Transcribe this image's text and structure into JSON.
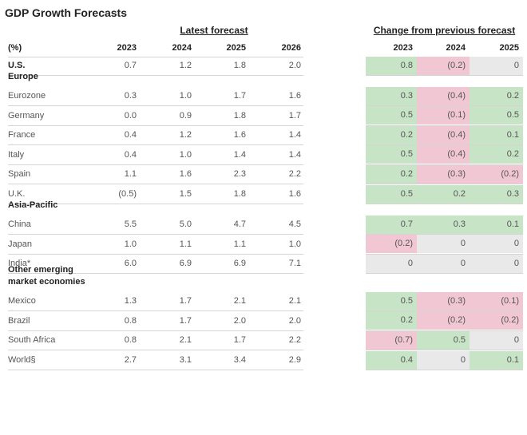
{
  "title": "GDP Growth Forecasts",
  "groups": [
    "Latest forecast",
    "Change from previous forecast"
  ],
  "header": {
    "unit": "(%)",
    "latest_years": [
      "2023",
      "2024",
      "2025",
      "2026"
    ],
    "change_years": [
      "2023",
      "2024",
      "2025"
    ]
  },
  "colors": {
    "up": "#c7e4c6",
    "down": "#f1c7d4",
    "flat": "#e9e9e9"
  },
  "rows": [
    {
      "label": "U.S.",
      "bold": true,
      "latest": [
        "0.7",
        "1.2",
        "1.8",
        "2.0"
      ],
      "change": [
        "0.8",
        "(0.2)",
        "0"
      ]
    },
    {
      "heading": [
        "Europe"
      ]
    },
    {
      "label": "Eurozone",
      "latest": [
        "0.3",
        "1.0",
        "1.7",
        "1.6"
      ],
      "change": [
        "0.3",
        "(0.4)",
        "0.2"
      ]
    },
    {
      "label": "Germany",
      "latest": [
        "0.0",
        "0.9",
        "1.8",
        "1.7"
      ],
      "change": [
        "0.5",
        "(0.1)",
        "0.5"
      ]
    },
    {
      "label": "France",
      "latest": [
        "0.4",
        "1.2",
        "1.6",
        "1.4"
      ],
      "change": [
        "0.2",
        "(0.4)",
        "0.1"
      ]
    },
    {
      "label": "Italy",
      "latest": [
        "0.4",
        "1.0",
        "1.4",
        "1.4"
      ],
      "change": [
        "0.5",
        "(0.4)",
        "0.2"
      ]
    },
    {
      "label": "Spain",
      "latest": [
        "1.1",
        "1.6",
        "2.3",
        "2.2"
      ],
      "change": [
        "0.2",
        "(0.3)",
        "(0.2)"
      ]
    },
    {
      "label": "U.K.",
      "latest": [
        "(0.5)",
        "1.5",
        "1.8",
        "1.6"
      ],
      "change": [
        "0.5",
        "0.2",
        "0.3"
      ]
    },
    {
      "heading": [
        "Asia-Pacific"
      ]
    },
    {
      "label": "China",
      "latest": [
        "5.5",
        "5.0",
        "4.7",
        "4.5"
      ],
      "change": [
        "0.7",
        "0.3",
        "0.1"
      ]
    },
    {
      "label": "Japan",
      "latest": [
        "1.0",
        "1.1",
        "1.1",
        "1.0"
      ],
      "change": [
        "(0.2)",
        "0",
        "0"
      ]
    },
    {
      "label": "India*",
      "latest": [
        "6.0",
        "6.9",
        "6.9",
        "7.1"
      ],
      "change": [
        "0",
        "0",
        "0"
      ]
    },
    {
      "heading": [
        "Other emerging",
        "market economies"
      ]
    },
    {
      "label": "Mexico",
      "latest": [
        "1.3",
        "1.7",
        "2.1",
        "2.1"
      ],
      "change": [
        "0.5",
        "(0.3)",
        "(0.1)"
      ]
    },
    {
      "label": "Brazil",
      "latest": [
        "0.8",
        "1.7",
        "2.0",
        "2.0"
      ],
      "change": [
        "0.2",
        "(0.2)",
        "(0.2)"
      ]
    },
    {
      "label": "South Africa",
      "latest": [
        "0.8",
        "2.1",
        "1.7",
        "2.2"
      ],
      "change": [
        "(0.7)",
        "0.5",
        "0"
      ]
    },
    {
      "label": "World§",
      "latest": [
        "2.7",
        "3.1",
        "3.4",
        "2.9"
      ],
      "change": [
        "0.4",
        "0",
        "0.1"
      ]
    }
  ]
}
